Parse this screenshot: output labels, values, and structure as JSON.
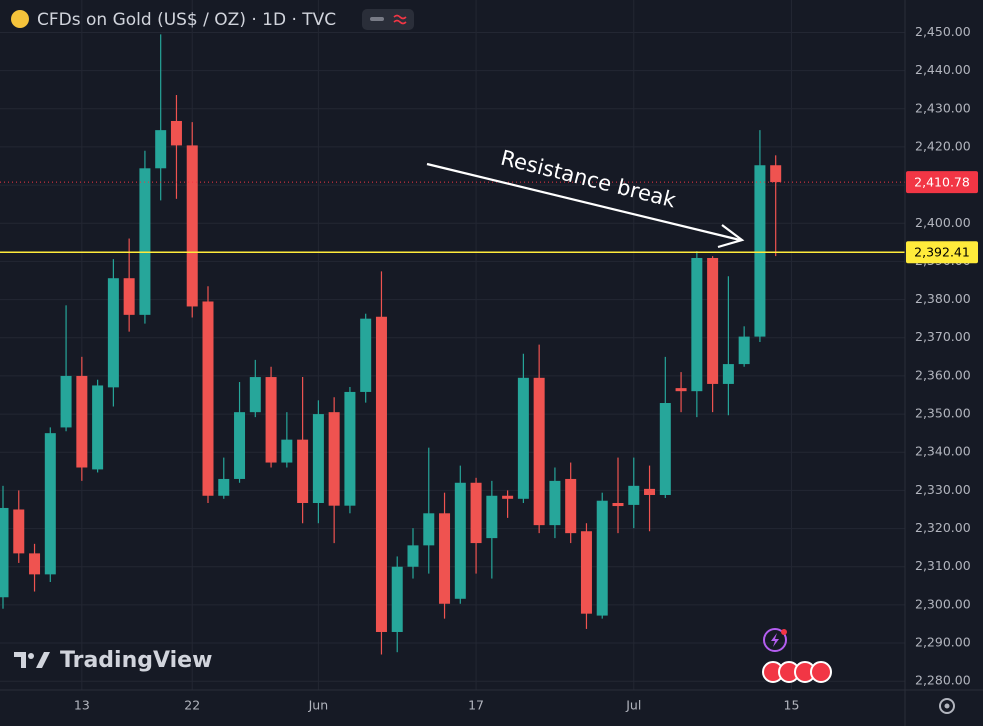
{
  "chart_data": {
    "type": "candlestick",
    "title": "CFDs on Gold (US$ / OZ) · 1D · TVC",
    "watermark": "TradingView",
    "annotation": "Resistance break",
    "up_color": "#26a69a",
    "down_color": "#ef5350",
    "grid": true,
    "xlim": [
      -0.19,
      57.2
    ],
    "xticks": [
      {
        "value": 5,
        "label": "13"
      },
      {
        "value": 12,
        "label": "22"
      },
      {
        "value": 20,
        "label": "Jun"
      },
      {
        "value": 30,
        "label": "17"
      },
      {
        "value": 40,
        "label": "Jul"
      },
      {
        "value": 50,
        "label": "15"
      }
    ],
    "ylim": [
      2277.7,
      2458.5
    ],
    "yticks": [
      {
        "value": 2280,
        "label": "2,280.00"
      },
      {
        "value": 2290,
        "label": "2,290.00"
      },
      {
        "value": 2300,
        "label": "2,300.00"
      },
      {
        "value": 2310,
        "label": "2,310.00"
      },
      {
        "value": 2320,
        "label": "2,320.00"
      },
      {
        "value": 2330,
        "label": "2,330.00"
      },
      {
        "value": 2340,
        "label": "2,340.00"
      },
      {
        "value": 2350,
        "label": "2,350.00"
      },
      {
        "value": 2360,
        "label": "2,360.00"
      },
      {
        "value": 2370,
        "label": "2,370.00"
      },
      {
        "value": 2380,
        "label": "2,380.00"
      },
      {
        "value": 2390,
        "label": "2,390.00"
      },
      {
        "value": 2400,
        "label": "2,400.00"
      },
      {
        "value": 2410,
        "label": "2,410.00"
      },
      {
        "value": 2420,
        "label": "2,420.00"
      },
      {
        "value": 2430,
        "label": "2,430.00"
      },
      {
        "value": 2440,
        "label": "2,440.00"
      },
      {
        "value": 2450,
        "label": "2,450.00"
      }
    ],
    "price_lines": [
      {
        "value": 2410.78,
        "label": "2,410.78",
        "color": "#f23645",
        "text_color": "#ffffff"
      },
      {
        "value": 2392.41,
        "label": "2,392.41",
        "color": "#ffeb3b",
        "text_color": "#000000"
      }
    ],
    "open": [
      2302,
      2325,
      2313.5,
      2308,
      2346.5,
      2360,
      2335.5,
      2357,
      2385.6,
      2376,
      2414.4,
      2426.8,
      2420.4,
      2379.5,
      2328.6,
      2333,
      2350.5,
      2359.7,
      2337.3,
      2343.3,
      2326.7,
      2350.5,
      2326,
      2355.8,
      2375.5,
      2292.9,
      2310,
      2315.6,
      2324,
      2301.6,
      2332,
      2317.5,
      2328.6,
      2327.8,
      2359.5,
      2320.9,
      2333,
      2319.3,
      2297.2,
      2326.7,
      2326.2,
      2330.4,
      2328.8,
      2356.8,
      2356,
      2390.9,
      2357.9,
      2363.1,
      2370.3,
      2415.2
    ],
    "high": [
      2331.2,
      2330,
      2316,
      2346.5,
      2378.5,
      2365,
      2359,
      2390.6,
      2396,
      2419,
      2449.5,
      2433.6,
      2426.5,
      2383.5,
      2338.6,
      2358.4,
      2364.2,
      2362.4,
      2350.5,
      2359.7,
      2353.6,
      2354.4,
      2357.1,
      2376.3,
      2387.4,
      2312.7,
      2320.1,
      2341.2,
      2329.4,
      2336.5,
      2333.3,
      2332.5,
      2330,
      2365.8,
      2368.2,
      2336,
      2337.3,
      2321.4,
      2329.4,
      2338.6,
      2338.6,
      2336.5,
      2365,
      2361,
      2392.7,
      2391.4,
      2386.1,
      2373,
      2424.4,
      2417.8
    ],
    "low": [
      2299,
      2311,
      2303.5,
      2306,
      2345.5,
      2332.5,
      2334.7,
      2352,
      2371.6,
      2373.7,
      2406,
      2406.4,
      2375.3,
      2326.7,
      2327.8,
      2332,
      2349.2,
      2336,
      2336,
      2321.4,
      2321.4,
      2316.2,
      2324,
      2353,
      2287,
      2287.6,
      2306.9,
      2308.2,
      2296.4,
      2300.3,
      2308.2,
      2306.9,
      2322.8,
      2326.7,
      2318.8,
      2317.5,
      2316.2,
      2293.7,
      2296.4,
      2318.8,
      2320.1,
      2319.3,
      2328,
      2350.5,
      2349.2,
      2350.5,
      2349.7,
      2362.4,
      2368.9,
      2391.4
    ],
    "close": [
      2325.4,
      2313.5,
      2308,
      2345,
      2360,
      2336,
      2357.5,
      2385.6,
      2376,
      2414.4,
      2424.4,
      2420.4,
      2378.2,
      2328.6,
      2333,
      2350.5,
      2359.7,
      2337.3,
      2343.3,
      2326.7,
      2350,
      2326,
      2355.8,
      2375,
      2292.9,
      2310,
      2315.6,
      2324,
      2300.3,
      2332,
      2316.2,
      2328.6,
      2327.8,
      2359.5,
      2320.9,
      2332.5,
      2318.8,
      2297.7,
      2327.3,
      2325.9,
      2331.2,
      2328.8,
      2352.9,
      2356,
      2390.9,
      2357.9,
      2363.1,
      2370.3,
      2415.2,
      2410.78
    ]
  }
}
